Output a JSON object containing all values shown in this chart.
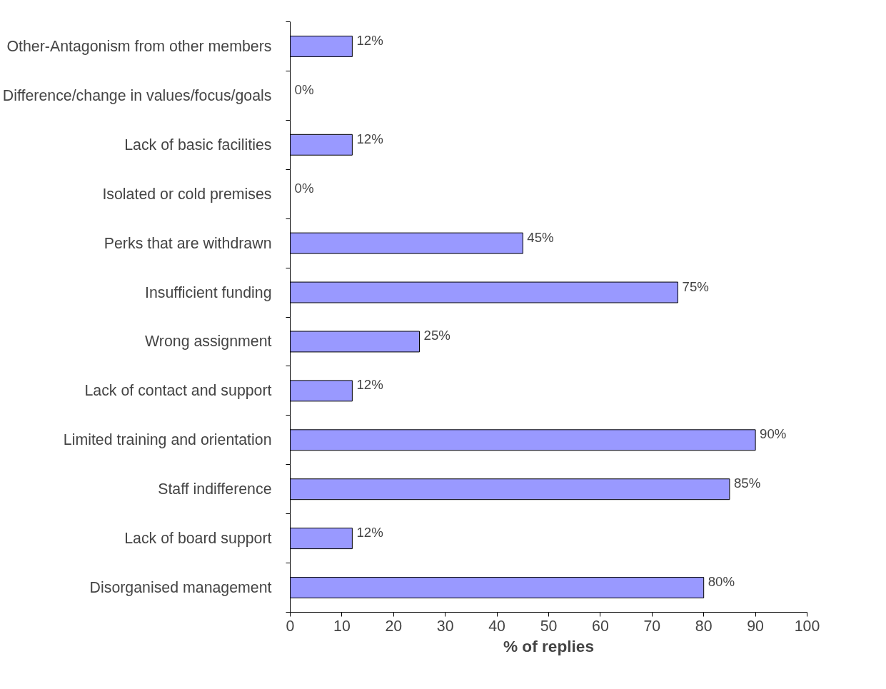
{
  "chart_data": {
    "type": "bar",
    "orientation": "horizontal",
    "xlabel": "% of replies",
    "categories": [
      "Other-Antagonism from other members",
      "Difference/change in values/focus/goals",
      "Lack of basic facilities",
      "Isolated or cold premises",
      "Perks that are withdrawn",
      "Insufficient funding",
      "Wrong assignment",
      "Lack of contact and support",
      "Limited training and orientation",
      "Staff indifference",
      "Lack of board support",
      "Disorganised management"
    ],
    "values": [
      12,
      0,
      12,
      0,
      45,
      75,
      25,
      12,
      90,
      85,
      12,
      80
    ],
    "value_labels": [
      "12%",
      "0%",
      "12%",
      "0%",
      "45%",
      "75%",
      "25%",
      "12%",
      "90%",
      "85%",
      "12%",
      "80%"
    ],
    "color": "#9999ff",
    "xlim": [
      0,
      100
    ],
    "xticks": [
      0,
      10,
      20,
      30,
      40,
      50,
      60,
      70,
      80,
      90,
      100
    ],
    "grid": false
  }
}
